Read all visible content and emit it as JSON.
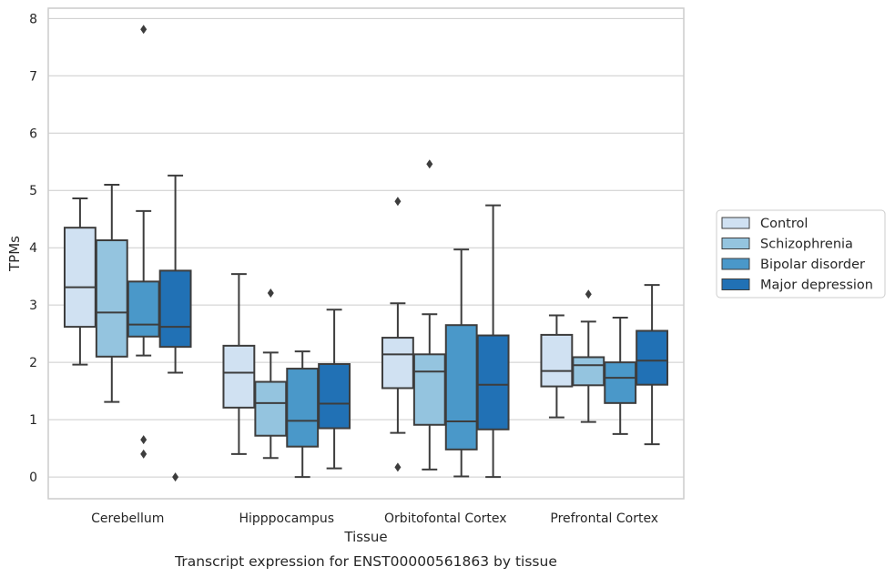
{
  "chart_data": {
    "type": "box",
    "caption": "Transcript expression for ENST00000561863 by tissue",
    "xlabel": "Tissue",
    "ylabel": "TPMs",
    "ylim": [
      -0.38,
      8.18
    ],
    "yticks": [
      0,
      1,
      2,
      3,
      4,
      5,
      6,
      7,
      8
    ],
    "grid": true,
    "legend_placement": "right",
    "categories": [
      "Cerebellum",
      "Hipppocampus",
      "Orbitofontal Cortex",
      "Prefrontal Cortex"
    ],
    "series": [
      {
        "name": "Control",
        "color": "#d0e1f2",
        "boxes": [
          {
            "whislo": 1.96,
            "q1": 2.62,
            "med": 3.31,
            "q3": 4.35,
            "whishi": 4.86,
            "fliers": []
          },
          {
            "whislo": 0.4,
            "q1": 1.21,
            "med": 1.82,
            "q3": 2.29,
            "whishi": 3.54,
            "fliers": []
          },
          {
            "whislo": 0.77,
            "q1": 1.55,
            "med": 2.14,
            "q3": 2.43,
            "whishi": 3.03,
            "fliers": [
              4.81,
              0.17
            ]
          },
          {
            "whislo": 1.04,
            "q1": 1.58,
            "med": 1.85,
            "q3": 2.48,
            "whishi": 2.82,
            "fliers": []
          }
        ]
      },
      {
        "name": "Schizophrenia",
        "color": "#94c4df",
        "boxes": [
          {
            "whislo": 1.31,
            "q1": 2.1,
            "med": 2.87,
            "q3": 4.13,
            "whishi": 5.1,
            "fliers": []
          },
          {
            "whislo": 0.33,
            "q1": 0.72,
            "med": 1.29,
            "q3": 1.66,
            "whishi": 2.17,
            "fliers": [
              3.21
            ]
          },
          {
            "whislo": 0.13,
            "q1": 0.91,
            "med": 1.84,
            "q3": 2.14,
            "whishi": 2.84,
            "fliers": [
              5.46
            ]
          },
          {
            "whislo": 0.96,
            "q1": 1.6,
            "med": 1.95,
            "q3": 2.09,
            "whishi": 2.71,
            "fliers": [
              3.19
            ]
          }
        ]
      },
      {
        "name": "Bipolar disorder",
        "color": "#4a98c9",
        "boxes": [
          {
            "whislo": 2.12,
            "q1": 2.45,
            "med": 2.66,
            "q3": 3.41,
            "whishi": 4.64,
            "fliers": [
              0.65,
              0.4,
              7.81
            ]
          },
          {
            "whislo": 0.0,
            "q1": 0.53,
            "med": 0.98,
            "q3": 1.89,
            "whishi": 2.19,
            "fliers": []
          },
          {
            "whislo": 0.01,
            "q1": 0.48,
            "med": 0.97,
            "q3": 2.65,
            "whishi": 3.97,
            "fliers": []
          },
          {
            "whislo": 0.75,
            "q1": 1.29,
            "med": 1.73,
            "q3": 2.0,
            "whishi": 2.78,
            "fliers": []
          }
        ]
      },
      {
        "name": "Major depression",
        "color": "#2171b5",
        "boxes": [
          {
            "whislo": 1.82,
            "q1": 2.27,
            "med": 2.62,
            "q3": 3.6,
            "whishi": 5.26,
            "fliers": [
              0.0
            ]
          },
          {
            "whislo": 0.15,
            "q1": 0.85,
            "med": 1.28,
            "q3": 1.97,
            "whishi": 2.92,
            "fliers": []
          },
          {
            "whislo": 0.0,
            "q1": 0.83,
            "med": 1.61,
            "q3": 2.47,
            "whishi": 4.74,
            "fliers": []
          },
          {
            "whislo": 0.57,
            "q1": 1.61,
            "med": 2.03,
            "q3": 2.55,
            "whishi": 3.35,
            "fliers": []
          }
        ]
      }
    ]
  }
}
